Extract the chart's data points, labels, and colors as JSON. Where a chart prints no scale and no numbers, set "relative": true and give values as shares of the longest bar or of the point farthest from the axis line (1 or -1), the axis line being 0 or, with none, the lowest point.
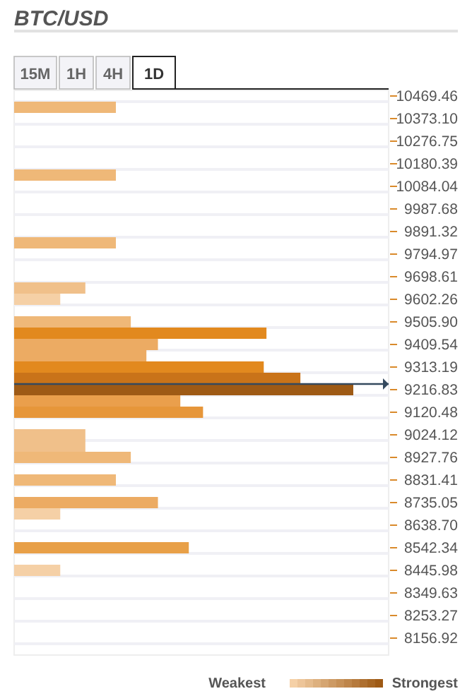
{
  "chart_data": {
    "type": "bar",
    "orientation": "horizontal",
    "relative": true,
    "title": "BTC/USD",
    "annotations": [
      "15M",
      "1H",
      "4H",
      "1D",
      "Weakest",
      "Strongest"
    ],
    "x": [
      10421.28,
      10132.21,
      9843.14,
      9650.43,
      9602.26,
      9505.9,
      9457.72,
      9409.54,
      9361.37,
      9313.19,
      9265.01,
      9216.83,
      9168.66,
      9120.48,
      9024.12,
      8975.94,
      8927.76,
      8831.41,
      8735.05,
      8686.87,
      8542.34,
      8445.98
    ],
    "values": [
      0.3,
      0.3,
      0.3,
      0.21,
      0.136,
      0.344,
      0.744,
      0.424,
      0.39,
      0.736,
      0.844,
      1,
      0.49,
      0.557,
      0.21,
      0.21,
      0.344,
      0.3,
      0.424,
      0.136,
      0.515,
      0.136
    ],
    "colors": [
      "#efb878",
      "#efb878",
      "#efb878",
      "#f0c08a",
      "#f5d0a6",
      "#efb878",
      "#e2891e",
      "#ecab63",
      "#ecab63",
      "#e2891e",
      "#c97319",
      "#9e5a15",
      "#ea9f4c",
      "#e6963a",
      "#f0c08a",
      "#f0c08a",
      "#efb878",
      "#efb878",
      "#ecab63",
      "#f5d0a6",
      "#e8a048",
      "#f5d0a6"
    ],
    "ylim": [
      8084.65,
      10493.55
    ],
    "yticks": [
      {
        "value": 10469.46,
        "label": "10469.46"
      },
      {
        "value": 10373.1,
        "label": "10373.10"
      },
      {
        "value": 10276.75,
        "label": "10276.75"
      },
      {
        "value": 10180.39,
        "label": "10180.39"
      },
      {
        "value": 10084.04,
        "label": "10084.04"
      },
      {
        "value": 9987.68,
        "label": "9987.68"
      },
      {
        "value": 9891.32,
        "label": "9891.32"
      },
      {
        "value": 9794.97,
        "label": "9794.97"
      },
      {
        "value": 9698.61,
        "label": "9698.61"
      },
      {
        "value": 9602.26,
        "label": "9602.26"
      },
      {
        "value": 9505.9,
        "label": "9505.90"
      },
      {
        "value": 9409.54,
        "label": "9409.54"
      },
      {
        "value": 9313.19,
        "label": "9313.19"
      },
      {
        "value": 9216.83,
        "label": "9216.83"
      },
      {
        "value": 9120.48,
        "label": "9120.48"
      },
      {
        "value": 9024.12,
        "label": "9024.12"
      },
      {
        "value": 8927.76,
        "label": "8927.76"
      },
      {
        "value": 8831.41,
        "label": "8831.41"
      },
      {
        "value": 8735.05,
        "label": "8735.05"
      },
      {
        "value": 8638.7,
        "label": "8638.70"
      },
      {
        "value": 8542.34,
        "label": "8542.34"
      },
      {
        "value": 8445.98,
        "label": "8445.98"
      },
      {
        "value": 8349.63,
        "label": "8349.63"
      },
      {
        "value": 8253.27,
        "label": "8253.27"
      },
      {
        "value": 8156.92,
        "label": "8156.92"
      }
    ],
    "ref_lines": [
      {
        "axis": "y",
        "value": 9241,
        "color": "#34495e"
      }
    ],
    "grid": "y"
  }
}
